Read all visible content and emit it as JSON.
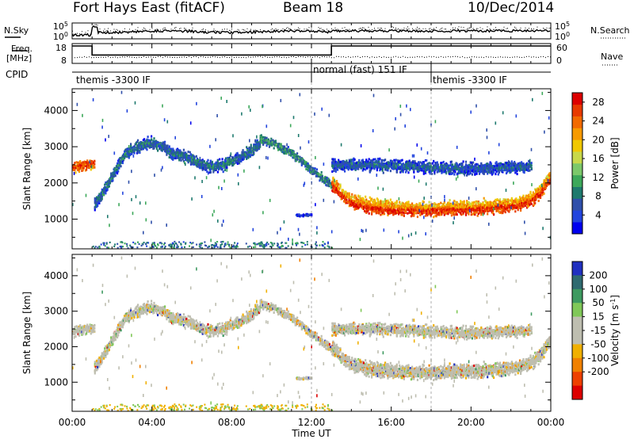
{
  "header": {
    "title": "Fort Hays East (fitACF)",
    "beam": "Beam 18",
    "date": "10/Dec/2014"
  },
  "noise_panel": {
    "left_label": "N.Sky",
    "right_label": "N.Search",
    "left_ticks": [
      "10^5",
      "10^0"
    ],
    "right_ticks": [
      "10^5",
      "10^0"
    ]
  },
  "freq_panel": {
    "left_label_line1": "Freq.",
    "left_label_line2": "[MHz]",
    "right_label": "Nave",
    "left_ticks": [
      "18",
      "8"
    ],
    "right_ticks": [
      "60",
      "0"
    ],
    "frequency_steps": [
      {
        "from_hour": 0.0,
        "to_hour": 1.0,
        "value_mhz": 18
      },
      {
        "from_hour": 1.0,
        "to_hour": 13.0,
        "value_mhz": 12
      },
      {
        "from_hour": 13.0,
        "to_hour": 24.0,
        "value_mhz": 18
      }
    ]
  },
  "cpid": {
    "label": "CPID",
    "segments": [
      {
        "label": "themis -3300 IF",
        "start_hour": 0.0
      },
      {
        "label": "normal (fast) 151 IF",
        "start_hour": 12.0
      },
      {
        "label": "themis -3300 IF",
        "start_hour": 18.0
      }
    ]
  },
  "chart_data": [
    {
      "type": "heatmap",
      "quantity": "Power",
      "ylabel": "Slant Range [km]",
      "xlabel": "Time UT",
      "xlim_hours": [
        0,
        24
      ],
      "ylim_km": [
        180,
        4600
      ],
      "x_tick_labels": [
        "00:00",
        "04:00",
        "08:00",
        "12:00",
        "16:00",
        "20:00",
        "00:00"
      ],
      "y_ticks": [
        1000,
        2000,
        3000,
        4000
      ],
      "colorbar": {
        "label": "Power [dB]",
        "ticks": [
          "4",
          "8",
          "12",
          "16",
          "20",
          "24",
          "28"
        ],
        "range": [
          0,
          30
        ],
        "colors": [
          "#0000ee",
          "#2244dd",
          "#2f4faa",
          "#1e7a6e",
          "#3da85a",
          "#7cc86a",
          "#c8d84a",
          "#f0c800",
          "#f79a00",
          "#f26a00",
          "#e83a00",
          "#dd0000"
        ]
      },
      "echo_bands": [
        {
          "name": "",
          "t": [
            0.0,
            0.3,
            0.6,
            0.9,
            1.1
          ],
          "r": [
            2400,
            2450,
            2480,
            2520,
            2500
          ],
          "width_km": 320,
          "power_db": 26
        },
        {
          "name": "",
          "t": [
            1.1,
            1.5,
            2.0,
            2.5,
            3.0,
            3.5,
            4.0,
            4.5,
            5.0,
            5.5,
            6.0,
            6.5,
            7.0,
            7.5,
            8.0,
            8.5,
            9.0,
            9.4
          ],
          "r": [
            1400,
            1700,
            2200,
            2700,
            2950,
            3050,
            3100,
            3000,
            2800,
            2750,
            2650,
            2500,
            2450,
            2500,
            2600,
            2750,
            2900,
            3100
          ],
          "width_km": 400,
          "power_db": 8
        },
        {
          "name": "",
          "t": [
            9.4,
            10.0,
            10.5,
            11.0,
            11.5,
            12.0,
            12.5,
            13.0
          ],
          "r": [
            3200,
            3100,
            2950,
            2800,
            2600,
            2350,
            2150,
            1900
          ],
          "width_km": 300,
          "power_db": 10
        },
        {
          "name": "",
          "t": [
            13.0,
            13.5,
            14.0,
            15.0,
            16.0,
            17.0,
            18.0,
            19.0,
            20.0,
            21.0,
            22.0,
            22.5,
            23.0,
            23.5,
            24.0
          ],
          "r": [
            2000,
            1700,
            1500,
            1350,
            1300,
            1280,
            1280,
            1300,
            1320,
            1350,
            1400,
            1450,
            1550,
            1800,
            2200
          ],
          "width_km": 500,
          "power_db": 22
        },
        {
          "name": "",
          "t": [
            13.0,
            15.0,
            17.0,
            19.0,
            21.0,
            23.0
          ],
          "r": [
            2500,
            2500,
            2450,
            2400,
            2400,
            2450
          ],
          "width_km": 400,
          "power_db": 7
        },
        {
          "name": "",
          "t": [
            11.2,
            11.6,
            12.0
          ],
          "r": [
            1100,
            1100,
            1120
          ],
          "width_km": 80,
          "power_db": 5
        }
      ]
    },
    {
      "type": "heatmap",
      "quantity": "Velocity",
      "ylabel": "Slant Range [km]",
      "xlabel": "Time UT",
      "xlim_hours": [
        0,
        24
      ],
      "ylim_km": [
        180,
        4600
      ],
      "x_tick_labels": [
        "00:00",
        "04:00",
        "08:00",
        "12:00",
        "16:00",
        "20:00",
        "00:00"
      ],
      "y_ticks": [
        1000,
        2000,
        3000,
        4000
      ],
      "colorbar": {
        "label": "Velocity [m s",
        "label_sup": "-1",
        "label_end": "]",
        "ticks": [
          "200",
          "100",
          "50",
          "15",
          "-15",
          "-50",
          "-100",
          "-200"
        ],
        "colors": [
          "#2030c0",
          "#2f6a70",
          "#3e9a60",
          "#80c858",
          "#bebeb0",
          "#bebeb0",
          "#f0b000",
          "#f08000",
          "#ee4000",
          "#dd0000"
        ]
      }
    }
  ]
}
